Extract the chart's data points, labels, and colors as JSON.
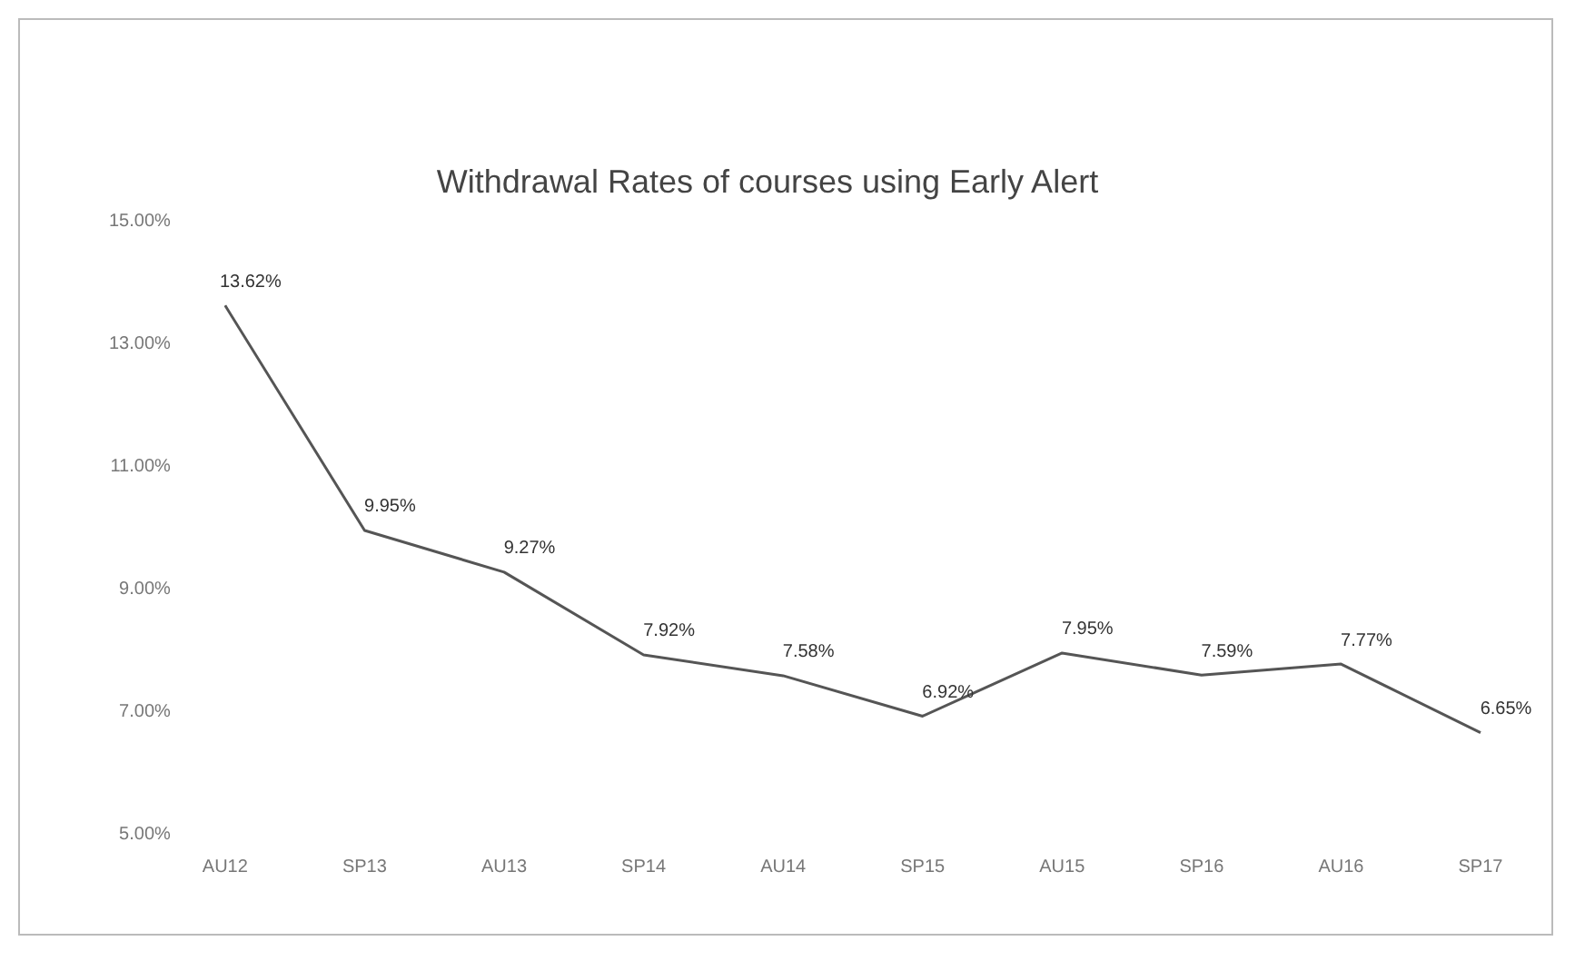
{
  "chart_data": {
    "type": "line",
    "title": "Withdrawal Rates of courses using Early Alert",
    "categories": [
      "AU12",
      "SP13",
      "AU13",
      "SP14",
      "AU14",
      "SP15",
      "AU15",
      "SP16",
      "AU16",
      "SP17"
    ],
    "values": [
      13.62,
      9.95,
      9.27,
      7.92,
      7.58,
      6.92,
      7.95,
      7.59,
      7.77,
      6.65
    ],
    "value_labels": [
      "13.62%",
      "9.95%",
      "9.27%",
      "7.92%",
      "7.58%",
      "6.92%",
      "7.95%",
      "7.59%",
      "7.77%",
      "6.65%"
    ],
    "color": "#555555",
    "ylim": [
      5,
      15
    ],
    "yticks": [
      {
        "value": 5,
        "label": "5.00%"
      },
      {
        "value": 7,
        "label": "7.00%"
      },
      {
        "value": 9,
        "label": "9.00%"
      },
      {
        "value": 11,
        "label": "11.00%"
      },
      {
        "value": 13,
        "label": "13.00%"
      },
      {
        "value": 15,
        "label": "15.00%"
      }
    ],
    "grid": false,
    "legend": false,
    "marker": "none",
    "line_style": "solid"
  }
}
